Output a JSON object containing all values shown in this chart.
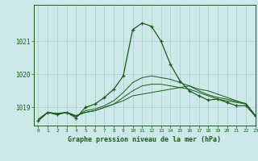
{
  "title": "Graphe pression niveau de la mer (hPa)",
  "background_color": "#cce8e8",
  "grid_color": "#b0c8c8",
  "line_color": "#1a5c1a",
  "marker_color": "#1a5c1a",
  "xlim": [
    -0.5,
    23
  ],
  "ylim": [
    1018.45,
    1022.1
  ],
  "yticks": [
    1019,
    1020,
    1021
  ],
  "xticks": [
    0,
    1,
    2,
    3,
    4,
    5,
    6,
    7,
    8,
    9,
    10,
    11,
    12,
    13,
    14,
    15,
    16,
    17,
    18,
    19,
    20,
    21,
    22,
    23
  ],
  "series": [
    {
      "x": [
        0,
        1,
        2,
        3,
        4,
        5,
        6,
        7,
        8,
        9,
        10,
        11,
        12,
        13,
        14,
        15,
        16,
        17,
        18,
        19,
        20,
        21,
        22,
        23
      ],
      "y": [
        1018.6,
        1018.85,
        1018.8,
        1018.85,
        1018.75,
        1018.85,
        1018.9,
        1019.0,
        1019.1,
        1019.2,
        1019.35,
        1019.4,
        1019.45,
        1019.5,
        1019.55,
        1019.6,
        1019.65,
        1019.55,
        1019.5,
        1019.4,
        1019.3,
        1019.2,
        1019.1,
        1018.75
      ],
      "with_markers": false
    },
    {
      "x": [
        0,
        1,
        2,
        3,
        4,
        5,
        6,
        7,
        8,
        9,
        10,
        11,
        12,
        13,
        14,
        15,
        16,
        17,
        18,
        19,
        20,
        21,
        22,
        23
      ],
      "y": [
        1018.6,
        1018.85,
        1018.8,
        1018.85,
        1018.75,
        1018.85,
        1018.9,
        1019.0,
        1019.1,
        1019.3,
        1019.5,
        1019.65,
        1019.7,
        1019.7,
        1019.65,
        1019.6,
        1019.55,
        1019.45,
        1019.35,
        1019.25,
        1019.2,
        1019.15,
        1019.1,
        1018.75
      ],
      "with_markers": false
    },
    {
      "x": [
        0,
        1,
        2,
        3,
        4,
        5,
        6,
        7,
        8,
        9,
        10,
        11,
        12,
        13,
        14,
        15,
        16,
        17,
        18,
        19,
        20,
        21,
        22,
        23
      ],
      "y": [
        1018.65,
        1018.85,
        1018.82,
        1018.85,
        1018.72,
        1018.9,
        1018.95,
        1019.05,
        1019.2,
        1019.45,
        1019.75,
        1019.9,
        1019.95,
        1019.9,
        1019.85,
        1019.75,
        1019.65,
        1019.5,
        1019.38,
        1019.3,
        1019.25,
        1019.18,
        1019.12,
        1018.75
      ],
      "with_markers": false
    },
    {
      "x": [
        0,
        1,
        2,
        3,
        4,
        5,
        6,
        7,
        8,
        9,
        10,
        11,
        12,
        13,
        14,
        15,
        16,
        17,
        18,
        19,
        20,
        21,
        22,
        23
      ],
      "y": [
        1018.6,
        1018.85,
        1018.78,
        1018.85,
        1018.68,
        1019.0,
        1019.1,
        1019.3,
        1019.55,
        1019.95,
        1021.35,
        1021.55,
        1021.45,
        1021.0,
        1020.3,
        1019.8,
        1019.5,
        1019.35,
        1019.22,
        1019.25,
        1019.15,
        1019.05,
        1019.05,
        1018.73
      ],
      "with_markers": true
    }
  ]
}
